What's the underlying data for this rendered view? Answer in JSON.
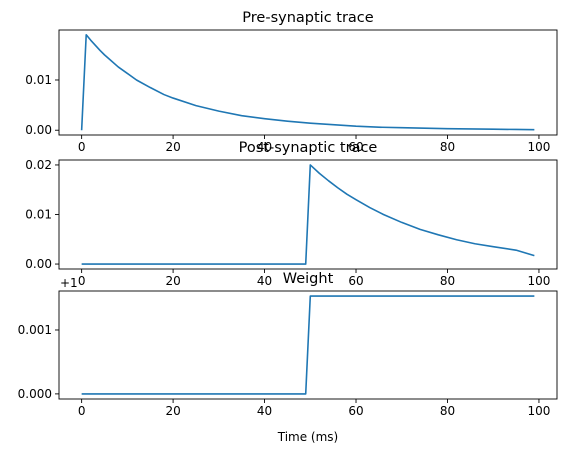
{
  "figure": {
    "xlabel": "Time (ms)"
  },
  "chart_data": [
    {
      "type": "line",
      "title": "Pre-synaptic trace",
      "xlabel": "",
      "ylabel": "",
      "x_ticks": [
        "0",
        "20",
        "40",
        "60",
        "80",
        "100"
      ],
      "y_ticks": [
        {
          "v": 0.0,
          "label": "0.00"
        },
        {
          "v": 0.01,
          "label": "0.01"
        }
      ],
      "xlim": [
        -4.95,
        103.95
      ],
      "ylim": [
        -0.00095,
        0.01995
      ],
      "grid": false,
      "line_color": "#1f77b4",
      "series": [
        {
          "x": [
            0,
            1,
            2,
            3,
            4,
            5,
            6,
            8,
            10,
            12,
            15,
            18,
            20,
            25,
            30,
            35,
            40,
            45,
            50,
            55,
            60,
            65,
            70,
            75,
            80,
            85,
            90,
            95,
            99
          ],
          "y": [
            0,
            0.019,
            0.0179,
            0.0169,
            0.0159,
            0.015,
            0.0142,
            0.0126,
            0.0113,
            0.01,
            0.0085,
            0.0071,
            0.0064,
            0.0049,
            0.0038,
            0.0029,
            0.0023,
            0.0018,
            0.0014,
            0.0011,
            0.0008,
            0.0006,
            0.0005,
            0.0004,
            0.0003,
            0.00025,
            0.0002,
            0.00015,
            0.0001
          ]
        }
      ]
    },
    {
      "type": "line",
      "title": "Post-synaptic trace",
      "xlabel": "",
      "ylabel": "",
      "x_ticks": [
        "0",
        "20",
        "40",
        "60",
        "80",
        "100"
      ],
      "y_ticks": [
        {
          "v": 0.0,
          "label": "0.00"
        },
        {
          "v": 0.01,
          "label": "0.01"
        },
        {
          "v": 0.02,
          "label": "0.02"
        }
      ],
      "xlim": [
        -4.95,
        103.95
      ],
      "ylim": [
        -0.001,
        0.021
      ],
      "grid": false,
      "line_color": "#1f77b4",
      "series": [
        {
          "x": [
            0,
            49,
            50,
            52,
            54,
            56,
            58,
            60,
            63,
            66,
            70,
            74,
            78,
            82,
            86,
            90,
            95,
            99
          ],
          "y": [
            0,
            0,
            0.02,
            0.0183,
            0.0168,
            0.0154,
            0.0141,
            0.013,
            0.0114,
            0.01,
            0.0084,
            0.007,
            0.0059,
            0.0049,
            0.0041,
            0.0035,
            0.0028,
            0.0017
          ]
        }
      ]
    },
    {
      "type": "line",
      "title": "Weight",
      "xlabel": "Time (ms)",
      "ylabel": "",
      "offset_label": "+1",
      "x_ticks": [
        "0",
        "20",
        "40",
        "60",
        "80",
        "100"
      ],
      "y_ticks": [
        {
          "v": 0.0,
          "label": "0.000"
        },
        {
          "v": 0.001,
          "label": "0.001"
        }
      ],
      "xlim": [
        -4.95,
        103.95
      ],
      "ylim": [
        -8e-05,
        0.00161
      ],
      "grid": false,
      "line_color": "#1f77b4",
      "series": [
        {
          "x": [
            0,
            49,
            50,
            99
          ],
          "y": [
            0,
            0,
            0.00153,
            0.00153
          ]
        }
      ]
    }
  ]
}
